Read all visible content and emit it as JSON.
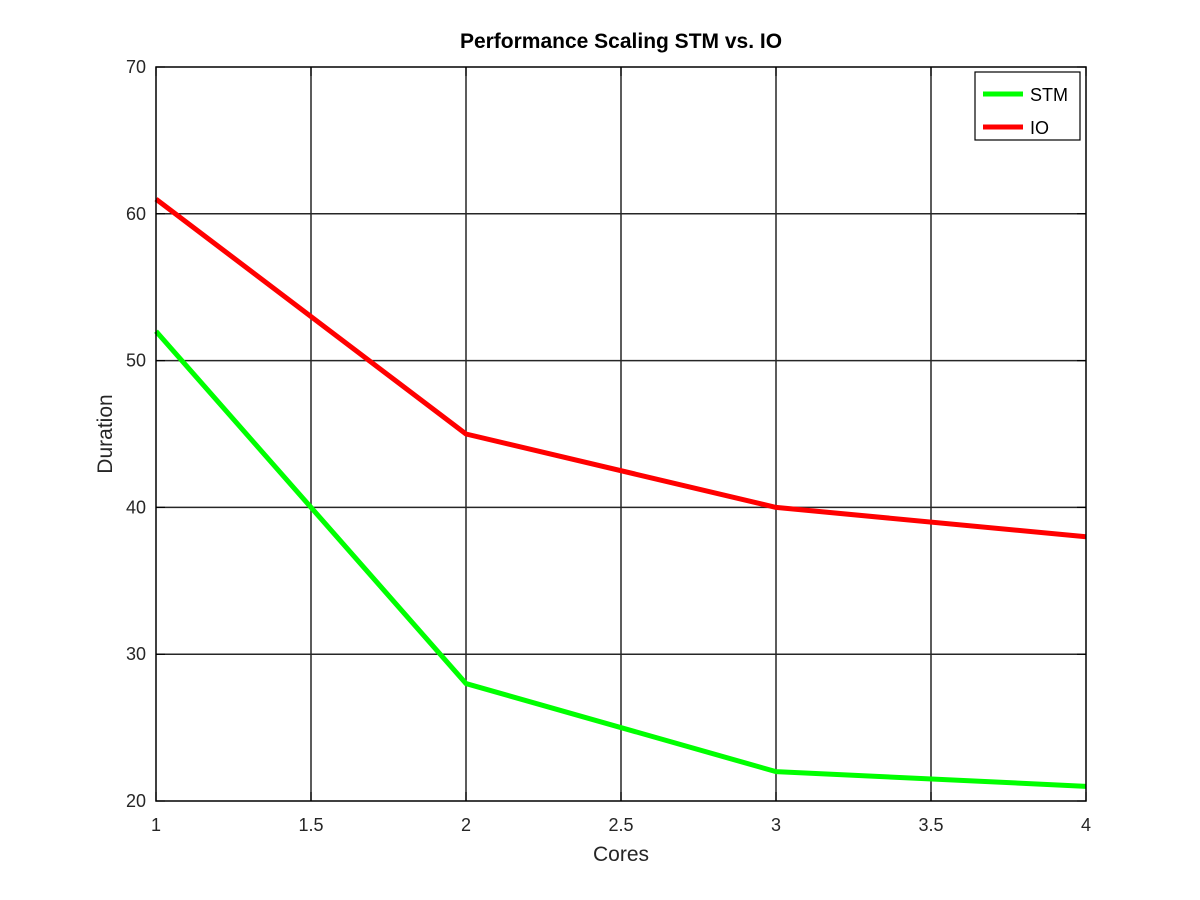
{
  "chart_data": {
    "type": "line",
    "title": "Performance Scaling STM vs. IO",
    "xlabel": "Cores",
    "ylabel": "Duration",
    "xlim": [
      1,
      4
    ],
    "ylim": [
      20,
      70
    ],
    "xticks": [
      "1",
      "1.5",
      "2",
      "2.5",
      "3",
      "3.5",
      "4"
    ],
    "xtick_values": [
      1,
      1.5,
      2,
      2.5,
      3,
      3.5,
      4
    ],
    "yticks": [
      "20",
      "30",
      "40",
      "50",
      "60",
      "70"
    ],
    "ytick_values": [
      20,
      30,
      40,
      50,
      60,
      70
    ],
    "grid": true,
    "legend_position": "top-right",
    "x": [
      1,
      2,
      3,
      4
    ],
    "series": [
      {
        "name": "STM",
        "values": [
          52,
          28,
          22,
          21
        ],
        "color": "#00ff00"
      },
      {
        "name": "IO",
        "values": [
          61,
          45,
          40,
          38
        ],
        "color": "#ff0000"
      }
    ]
  }
}
